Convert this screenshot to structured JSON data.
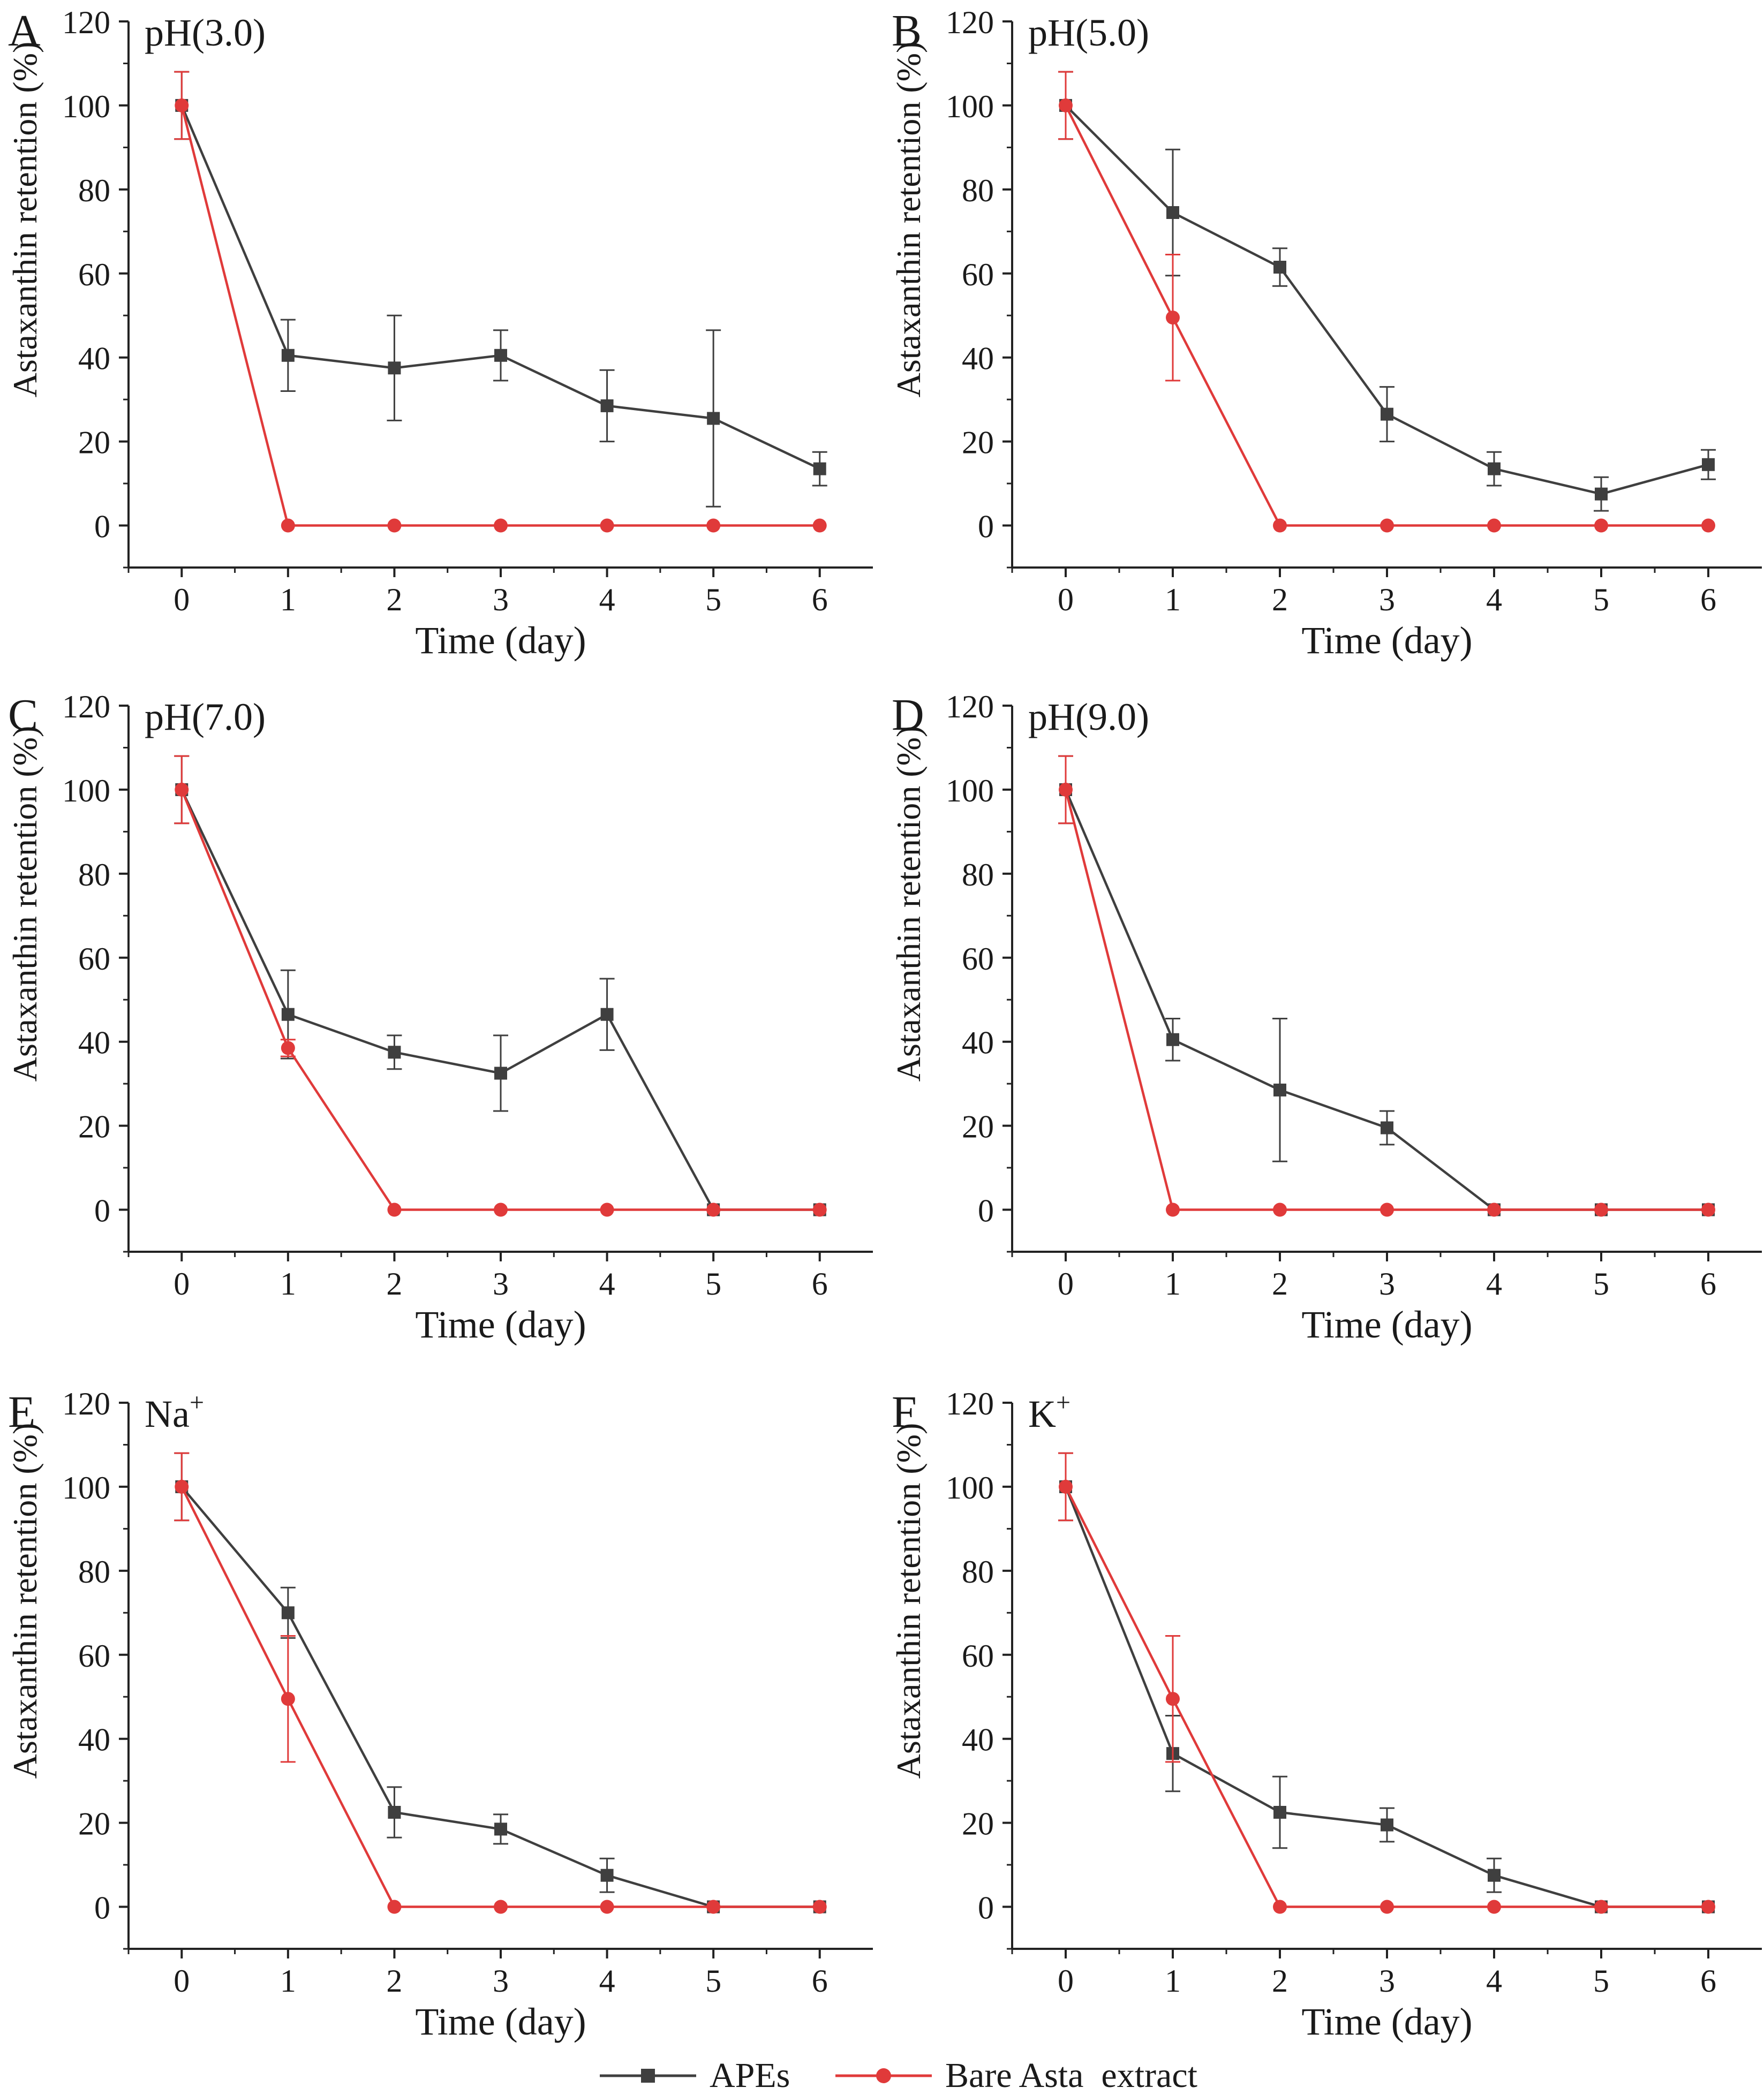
{
  "colors": {
    "apes": "#3f3f3f",
    "bare": "#e03a3a",
    "axis": "#222222"
  },
  "legend": [
    {
      "name": "APEs",
      "color": "#3f3f3f",
      "marker": "square"
    },
    {
      "name": "Bare Asta  extract",
      "color": "#e03a3a",
      "marker": "circle"
    }
  ],
  "chart_data": [
    {
      "type": "line",
      "panel": "A",
      "title": "pH(3.0)",
      "xlabel": "Time (day)",
      "ylabel": "Astaxanthin retention (%)",
      "x": [
        0,
        1,
        2,
        3,
        4,
        5,
        6
      ],
      "xlim": [
        -0.5,
        6.5
      ],
      "ylim": [
        -10,
        120
      ],
      "yticks": [
        0,
        20,
        40,
        60,
        80,
        100,
        120
      ],
      "series": [
        {
          "name": "APEs",
          "values": [
            100,
            40.5,
            37.5,
            40.5,
            28.5,
            25.5,
            13.5
          ],
          "errors": [
            8,
            8.5,
            12.5,
            6,
            8.5,
            21,
            4
          ]
        },
        {
          "name": "Bare Asta  extract",
          "values": [
            100,
            0,
            0,
            0,
            0,
            0,
            0
          ],
          "errors": [
            8,
            0,
            0,
            0,
            0,
            0,
            0
          ]
        }
      ]
    },
    {
      "type": "line",
      "panel": "B",
      "title": "pH(5.0)",
      "xlabel": "Time (day)",
      "ylabel": "Astaxanthin retention (%)",
      "x": [
        0,
        1,
        2,
        3,
        4,
        5,
        6
      ],
      "xlim": [
        -0.5,
        6.5
      ],
      "ylim": [
        -10,
        120
      ],
      "yticks": [
        0,
        20,
        40,
        60,
        80,
        100,
        120
      ],
      "series": [
        {
          "name": "APEs",
          "values": [
            100,
            74.5,
            61.5,
            26.5,
            13.5,
            7.5,
            14.5
          ],
          "errors": [
            8,
            15,
            4.5,
            6.5,
            4,
            4,
            3.5
          ]
        },
        {
          "name": "Bare Asta  extract",
          "values": [
            100,
            49.5,
            0,
            0,
            0,
            0,
            0
          ],
          "errors": [
            8,
            15,
            0,
            0,
            0,
            0,
            0
          ]
        }
      ]
    },
    {
      "type": "line",
      "panel": "C",
      "title": "pH(7.0)",
      "xlabel": "Time (day)",
      "ylabel": "Astaxanthin retention (%)",
      "x": [
        0,
        1,
        2,
        3,
        4,
        5,
        6
      ],
      "xlim": [
        -0.5,
        6.5
      ],
      "ylim": [
        -10,
        120
      ],
      "yticks": [
        0,
        20,
        40,
        60,
        80,
        100,
        120
      ],
      "series": [
        {
          "name": "APEs",
          "values": [
            100,
            46.5,
            37.5,
            32.5,
            46.5,
            0,
            0
          ],
          "errors": [
            8,
            10.5,
            4,
            9,
            8.5,
            0,
            0
          ]
        },
        {
          "name": "Bare Asta  extract",
          "values": [
            100,
            38.5,
            0,
            0,
            0,
            0,
            0
          ],
          "errors": [
            8,
            2,
            0,
            0,
            0,
            0,
            0
          ]
        }
      ]
    },
    {
      "type": "line",
      "panel": "D",
      "title": "pH(9.0)",
      "xlabel": "Time (day)",
      "ylabel": "Astaxanthin retention (%)",
      "x": [
        0,
        1,
        2,
        3,
        4,
        5,
        6
      ],
      "xlim": [
        -0.5,
        6.5
      ],
      "ylim": [
        -10,
        120
      ],
      "yticks": [
        0,
        20,
        40,
        60,
        80,
        100,
        120
      ],
      "series": [
        {
          "name": "APEs",
          "values": [
            100,
            40.5,
            28.5,
            19.5,
            0,
            0,
            0
          ],
          "errors": [
            8,
            5,
            17,
            4,
            0,
            0,
            0
          ]
        },
        {
          "name": "Bare Asta  extract",
          "values": [
            100,
            0,
            0,
            0,
            0,
            0,
            0
          ],
          "errors": [
            8,
            0,
            0,
            0,
            0,
            0,
            0
          ]
        }
      ]
    },
    {
      "type": "line",
      "panel": "E",
      "title": "Na",
      "title_sup": "+",
      "xlabel": "Time (day)",
      "ylabel": "Astaxanthin retention (%)",
      "x": [
        0,
        1,
        2,
        3,
        4,
        5,
        6
      ],
      "xlim": [
        -0.5,
        6.5
      ],
      "ylim": [
        -10,
        120
      ],
      "yticks": [
        0,
        20,
        40,
        60,
        80,
        100,
        120
      ],
      "series": [
        {
          "name": "APEs",
          "values": [
            100,
            70,
            22.5,
            18.5,
            7.5,
            0,
            0
          ],
          "errors": [
            8,
            6,
            6,
            3.5,
            4,
            0,
            0
          ]
        },
        {
          "name": "Bare Asta  extract",
          "values": [
            100,
            49.5,
            0,
            0,
            0,
            0,
            0
          ],
          "errors": [
            8,
            15,
            0,
            0,
            0,
            0,
            0
          ]
        }
      ]
    },
    {
      "type": "line",
      "panel": "F",
      "title": "K",
      "title_sup": "+",
      "xlabel": "Time (day)",
      "ylabel": "Astaxanthin retention (%)",
      "x": [
        0,
        1,
        2,
        3,
        4,
        5,
        6
      ],
      "xlim": [
        -0.5,
        6.5
      ],
      "ylim": [
        -10,
        120
      ],
      "yticks": [
        0,
        20,
        40,
        60,
        80,
        100,
        120
      ],
      "series": [
        {
          "name": "APEs",
          "values": [
            100,
            36.5,
            22.5,
            19.5,
            7.5,
            0,
            0
          ],
          "errors": [
            8,
            9,
            8.5,
            4,
            4,
            0,
            0
          ]
        },
        {
          "name": "Bare Asta  extract",
          "values": [
            100,
            49.5,
            0,
            0,
            0,
            0,
            0
          ],
          "errors": [
            8,
            15,
            0,
            0,
            0,
            0,
            0
          ]
        }
      ]
    }
  ]
}
